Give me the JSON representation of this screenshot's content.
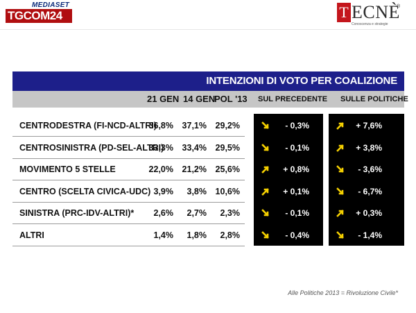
{
  "brand": {
    "left_top": "MEDIASET",
    "left_main": "TGCOM24",
    "right_initial": "T",
    "right_rest": "ECNÈ",
    "right_reg": "®",
    "right_tag": "Conoscenza e strategie"
  },
  "colors": {
    "title_bar": "#1d1f8a",
    "header_bar": "#c6c6c6",
    "arrow": "#f5d000",
    "delta_bg": "#000000"
  },
  "chart_data": {
    "type": "table",
    "title": "INTENZIONI DI VOTO PER COALIZIONE",
    "columns": [
      "21 GEN",
      "14 GEN",
      "POL '13",
      "SUL PRECEDENTE",
      "SULLE POLITICHE"
    ],
    "rows": [
      {
        "name": "CENTRODESTRA (FI-NCD-ALTRI)",
        "v1": "36,8%",
        "v2": "37,1%",
        "v3": "29,2%",
        "prec": "- 0,3%",
        "prec_dir": "down",
        "pol": "+ 7,6%",
        "pol_dir": "up"
      },
      {
        "name": "CENTROSINISTRA (PD-SEL-ALTRI)",
        "v1": "33,3%",
        "v2": "33,4%",
        "v3": "29,5%",
        "prec": "- 0,1%",
        "prec_dir": "down",
        "pol": "+ 3,8%",
        "pol_dir": "up"
      },
      {
        "name": "MOVIMENTO 5 STELLE",
        "v1": "22,0%",
        "v2": "21,2%",
        "v3": "25,6%",
        "prec": "+ 0,8%",
        "prec_dir": "up",
        "pol": "- 3,6%",
        "pol_dir": "down"
      },
      {
        "name": "CENTRO (SCELTA CIVICA-UDC)",
        "v1": "3,9%",
        "v2": "3,8%",
        "v3": "10,6%",
        "prec": "+ 0,1%",
        "prec_dir": "up",
        "pol": "- 6,7%",
        "pol_dir": "down"
      },
      {
        "name": "SINISTRA (PRC-IDV-ALTRI)*",
        "v1": "2,6%",
        "v2": "2,7%",
        "v3": "2,3%",
        "prec": "- 0,1%",
        "prec_dir": "down",
        "pol": "+ 0,3%",
        "pol_dir": "up"
      },
      {
        "name": "ALTRI",
        "v1": "1,4%",
        "v2": "1,8%",
        "v3": "2,8%",
        "prec": "- 0,4%",
        "prec_dir": "down",
        "pol": "- 1,4%",
        "pol_dir": "down"
      }
    ]
  },
  "footnote": "Alle Politiche 2013 = Rivoluzione Civile*"
}
